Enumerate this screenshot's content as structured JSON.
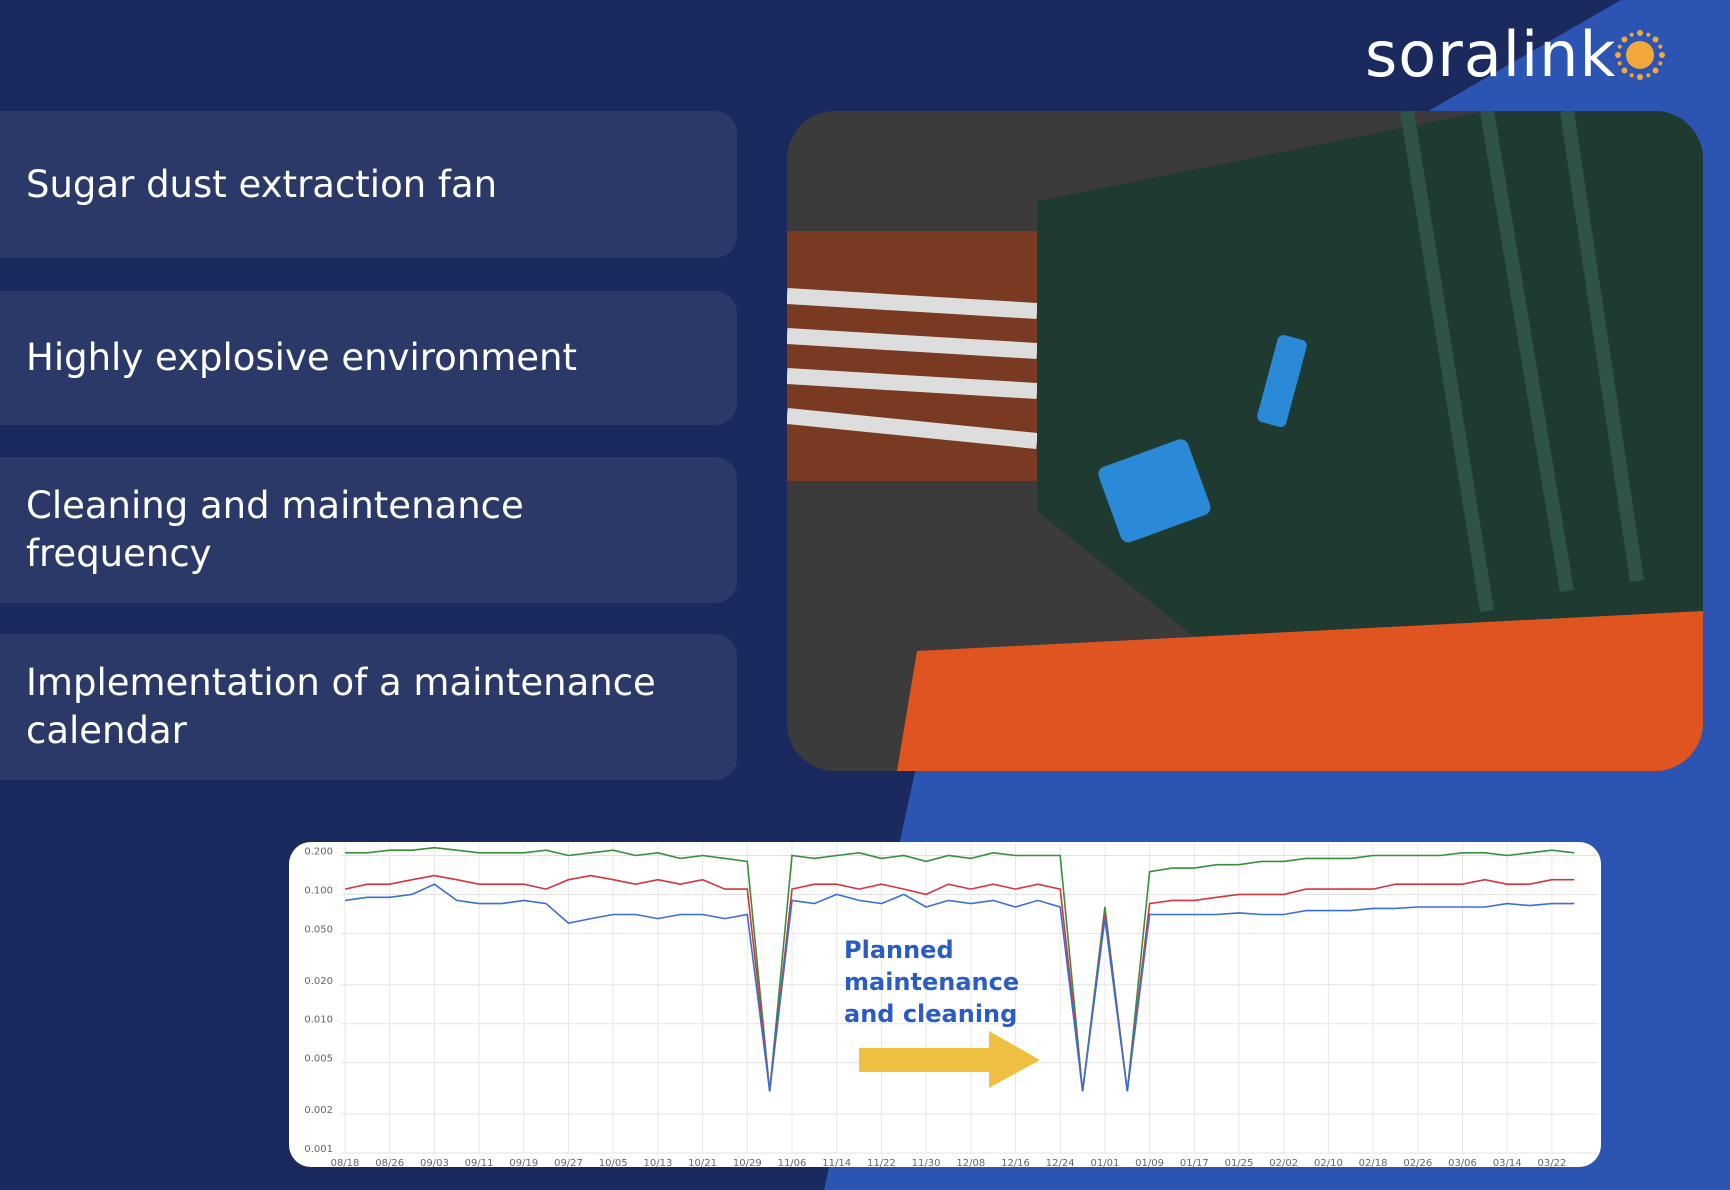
{
  "header": {
    "logo": "soralink"
  },
  "items": [
    "Sugar dust extraction fan",
    "Highly explosive environment",
    "Cleaning and maintenance frequency",
    "Implementation of a maintenance calendar"
  ],
  "chart_data": {
    "type": "line",
    "yscale": "log",
    "grid": true,
    "annotation": "Planned maintenance and cleaning",
    "categories": [
      "08/18",
      null,
      "08/26",
      null,
      "09/03",
      null,
      "09/11",
      null,
      "09/19",
      null,
      "09/27",
      null,
      "10/05",
      null,
      "10/13",
      null,
      "10/21",
      null,
      "10/29",
      null,
      "11/06",
      null,
      "11/14",
      null,
      "11/22",
      null,
      "11/30",
      null,
      "12/08",
      null,
      "12/16",
      null,
      "12/24",
      null,
      "01/01",
      null,
      "01/09",
      null,
      "01/17",
      null,
      "01/25",
      null,
      "02/02",
      null,
      "02/10",
      null,
      "02/18",
      null,
      "02/26",
      null,
      "03/06",
      null,
      "03/14",
      null,
      "03/22",
      null
    ],
    "ylim": [
      0.001,
      0.25
    ],
    "yticks": [
      0.001,
      0.002,
      0.005,
      {
        "value": 0.01,
        "label": "0.010"
      },
      {
        "value": 0.02,
        "label": "0.020"
      },
      {
        "value": 0.05,
        "label": "0.050"
      },
      {
        "value": 0.1,
        "label": "0.100"
      },
      {
        "value": 0.2,
        "label": "0.200"
      }
    ],
    "series": [
      {
        "color": "#3a8f3a",
        "values": [
          0.21,
          0.21,
          0.22,
          0.22,
          0.23,
          0.22,
          0.21,
          0.21,
          0.21,
          0.22,
          0.2,
          0.21,
          0.22,
          0.2,
          0.21,
          0.19,
          0.2,
          0.19,
          0.18,
          0.003,
          0.2,
          0.19,
          0.2,
          0.21,
          0.19,
          0.2,
          0.18,
          0.2,
          0.19,
          0.21,
          0.2,
          0.2,
          0.2,
          0.003,
          0.08,
          0.003,
          0.15,
          0.16,
          0.16,
          0.17,
          0.17,
          0.18,
          0.18,
          0.19,
          0.19,
          0.19,
          0.2,
          0.2,
          0.2,
          0.2,
          0.21,
          0.21,
          0.2,
          0.21,
          0.22,
          0.21
        ]
      },
      {
        "color": "#d9343a",
        "values": [
          0.11,
          0.12,
          0.12,
          0.13,
          0.14,
          0.13,
          0.12,
          0.12,
          0.12,
          0.11,
          0.13,
          0.14,
          0.13,
          0.12,
          0.13,
          0.12,
          0.13,
          0.11,
          0.11,
          0.003,
          0.11,
          0.12,
          0.12,
          0.11,
          0.12,
          0.11,
          0.1,
          0.12,
          0.11,
          0.12,
          0.11,
          0.12,
          0.11,
          0.003,
          0.07,
          0.003,
          0.085,
          0.09,
          0.09,
          0.095,
          0.1,
          0.1,
          0.1,
          0.11,
          0.11,
          0.11,
          0.11,
          0.12,
          0.12,
          0.12,
          0.12,
          0.13,
          0.12,
          0.12,
          0.13,
          0.13
        ]
      },
      {
        "color": "#3b6fd6",
        "values": [
          0.09,
          0.095,
          0.095,
          0.1,
          0.12,
          0.09,
          0.085,
          0.085,
          0.09,
          0.085,
          0.06,
          0.065,
          0.07,
          0.07,
          0.065,
          0.07,
          0.07,
          0.065,
          0.07,
          0.003,
          0.09,
          0.085,
          0.1,
          0.09,
          0.085,
          0.1,
          0.08,
          0.09,
          0.085,
          0.09,
          0.08,
          0.09,
          0.08,
          0.003,
          0.065,
          0.003,
          0.07,
          0.07,
          0.07,
          0.07,
          0.072,
          0.07,
          0.07,
          0.075,
          0.075,
          0.075,
          0.078,
          0.078,
          0.08,
          0.08,
          0.08,
          0.08,
          0.085,
          0.082,
          0.085,
          0.085
        ]
      }
    ]
  }
}
